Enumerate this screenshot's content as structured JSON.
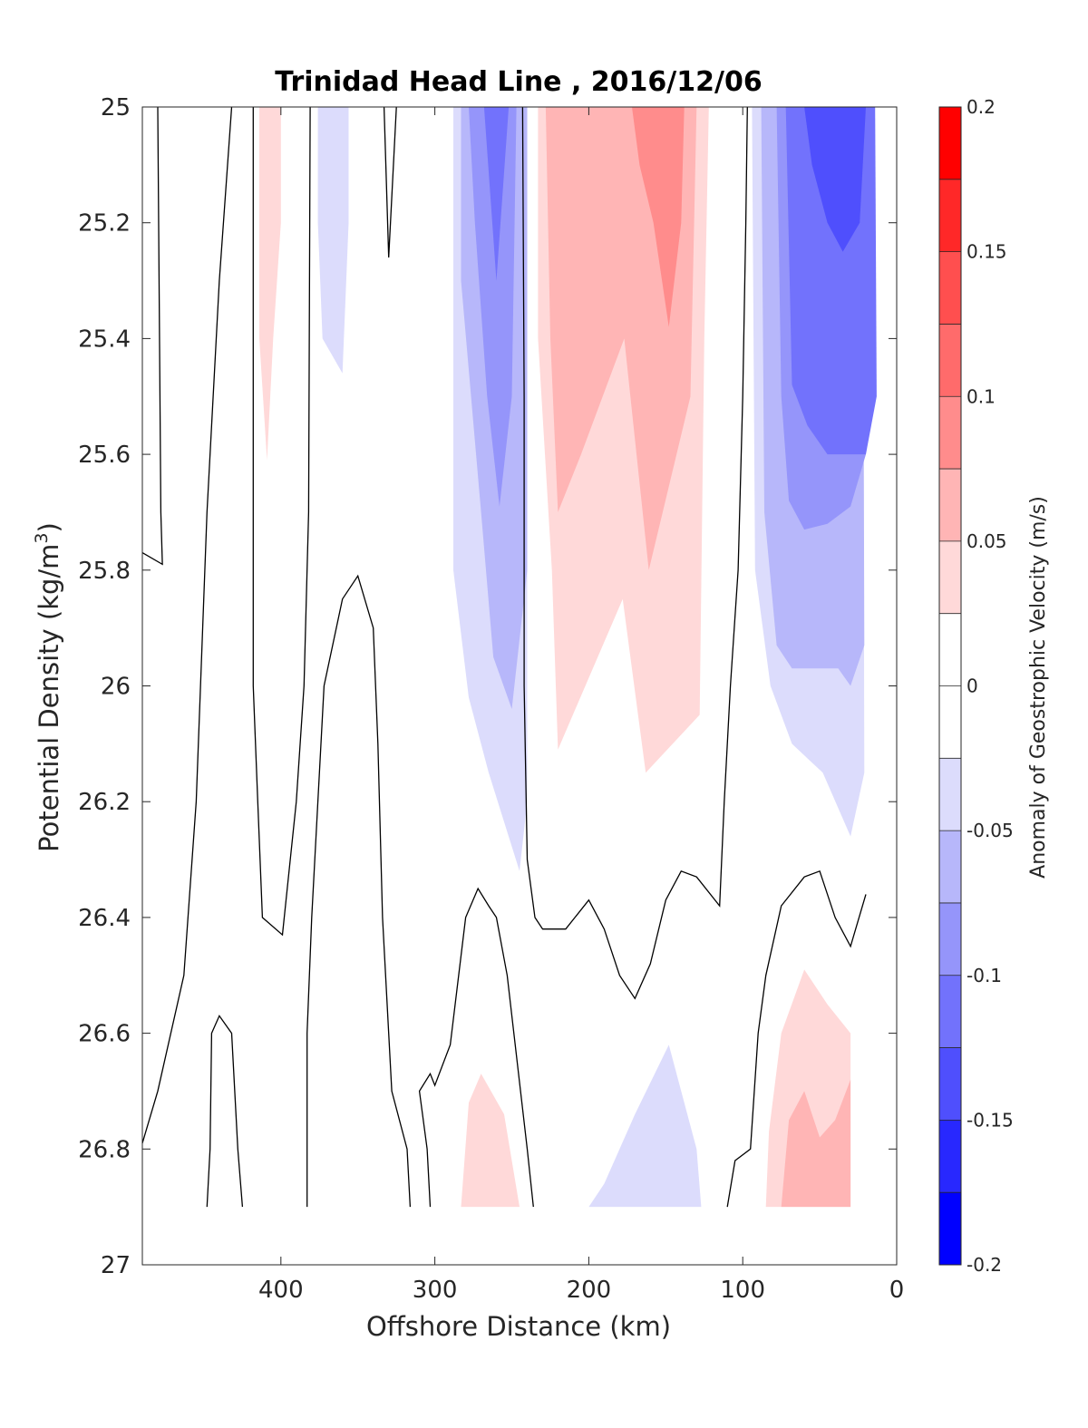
{
  "chart_data": {
    "type": "contourf",
    "title": "Trinidad Head Line , 2016/12/06",
    "xlabel": "Offshore Distance (km)",
    "ylabel_main": "Potential Density (kg/m",
    "ylabel_sup": "3",
    "ylabel_close": ")",
    "colorbar_label": "Anomaly of Geostrophic Velocity (m/s)",
    "xlim": [
      490,
      0
    ],
    "x_reversed": true,
    "ylim": [
      25,
      27
    ],
    "y_reversed": true,
    "x_ticks": [
      400,
      300,
      200,
      100,
      0
    ],
    "x_tick_labels": [
      "400",
      "300",
      "200",
      "100",
      "0"
    ],
    "y_ticks": [
      25,
      25.2,
      25.4,
      25.6,
      25.8,
      26,
      26.2,
      26.4,
      26.6,
      26.8,
      27
    ],
    "y_tick_labels": [
      "25",
      "25.2",
      "25.4",
      "25.6",
      "25.8",
      "26",
      "26.2",
      "26.4",
      "26.6",
      "26.8",
      "27"
    ],
    "colorbar": {
      "range": [
        -0.2,
        0.2
      ],
      "tick_values": [
        0.2,
        0.15,
        0.1,
        0.05,
        0,
        -0.05,
        -0.1,
        -0.15,
        -0.2
      ],
      "tick_labels": [
        "0.2",
        "0.15",
        "0.1",
        "0.05",
        "0",
        "-0.05",
        "-0.1",
        "-0.15",
        "-0.2"
      ],
      "levels": [
        {
          "range": [
            0.175,
            0.2
          ],
          "color": "#ff0000"
        },
        {
          "range": [
            0.15,
            0.175
          ],
          "color": "#ff2828"
        },
        {
          "range": [
            0.125,
            0.15
          ],
          "color": "#ff4f4f"
        },
        {
          "range": [
            0.1,
            0.125
          ],
          "color": "#ff6b6b"
        },
        {
          "range": [
            0.075,
            0.1
          ],
          "color": "#ff8c8c"
        },
        {
          "range": [
            0.05,
            0.075
          ],
          "color": "#ffb5b5"
        },
        {
          "range": [
            0.025,
            0.05
          ],
          "color": "#ffd9d9"
        },
        {
          "range": [
            0,
            0.025
          ],
          "color": "#ffffff"
        },
        {
          "range": [
            -0.025,
            0
          ],
          "color": "#ffffff"
        },
        {
          "range": [
            -0.05,
            -0.025
          ],
          "color": "#dcdcfc"
        },
        {
          "range": [
            -0.075,
            -0.05
          ],
          "color": "#b7b7fa"
        },
        {
          "range": [
            -0.1,
            -0.075
          ],
          "color": "#9595fa"
        },
        {
          "range": [
            -0.125,
            -0.1
          ],
          "color": "#7272fc"
        },
        {
          "range": [
            -0.15,
            -0.125
          ],
          "color": "#4f4ffd"
        },
        {
          "range": [
            -0.175,
            -0.15
          ],
          "color": "#2828fe"
        },
        {
          "range": [
            -0.2,
            -0.175
          ],
          "color": "#0000ff"
        }
      ]
    },
    "filled_regions": [
      {
        "level": 0.025,
        "color": "#ffd9d9",
        "points": [
          [
            414,
            25
          ],
          [
            400,
            25
          ],
          [
            400,
            25.2
          ],
          [
            405,
            25.4
          ],
          [
            409,
            25.61
          ],
          [
            414,
            25.4
          ]
        ]
      },
      {
        "level": -0.025,
        "color": "#dcdcfc",
        "points": [
          [
            383,
            25
          ],
          [
            356,
            25
          ],
          [
            356,
            25.2
          ],
          [
            360,
            25.46
          ],
          [
            373,
            25.4
          ],
          [
            376,
            25.2
          ],
          [
            376,
            25
          ]
        ]
      },
      {
        "level": -0.025,
        "color": "#dcdcfc",
        "points": [
          [
            288,
            25
          ],
          [
            240,
            25
          ],
          [
            240,
            26.2
          ],
          [
            245,
            26.32
          ],
          [
            265,
            26.15
          ],
          [
            278,
            26.02
          ],
          [
            288,
            25.8
          ]
        ]
      },
      {
        "level": -0.05,
        "color": "#b7b7fa",
        "points": [
          [
            283,
            25
          ],
          [
            240,
            25
          ],
          [
            240,
            25.8
          ],
          [
            250,
            26.04
          ],
          [
            262,
            25.95
          ],
          [
            270,
            25.7
          ],
          [
            283,
            25.3
          ]
        ]
      },
      {
        "level": -0.075,
        "color": "#9595fa",
        "points": [
          [
            278,
            25
          ],
          [
            247,
            25
          ],
          [
            250,
            25.5
          ],
          [
            258,
            25.69
          ],
          [
            266,
            25.5
          ],
          [
            274,
            25.2
          ]
        ]
      },
      {
        "level": -0.1,
        "color": "#7272fc",
        "points": [
          [
            268,
            25
          ],
          [
            252,
            25
          ],
          [
            256,
            25.15
          ],
          [
            260,
            25.3
          ],
          [
            264,
            25.15
          ]
        ]
      },
      {
        "level": 0.025,
        "color": "#ffd9d9",
        "points": [
          [
            233,
            25
          ],
          [
            122,
            25
          ],
          [
            125,
            25.4
          ],
          [
            128,
            26.05
          ],
          [
            163,
            26.15
          ],
          [
            178,
            25.85
          ],
          [
            220,
            26.11
          ],
          [
            224,
            25.8
          ],
          [
            233,
            25.4
          ]
        ]
      },
      {
        "level": 0.05,
        "color": "#ffb5b5",
        "points": [
          [
            228,
            25
          ],
          [
            130,
            25
          ],
          [
            134,
            25.5
          ],
          [
            161,
            25.8
          ],
          [
            177,
            25.4
          ],
          [
            205,
            25.6
          ],
          [
            220,
            25.7
          ],
          [
            225,
            25.4
          ]
        ]
      },
      {
        "level": 0.075,
        "color": "#ff8c8c",
        "points": [
          [
            172,
            25
          ],
          [
            138,
            25
          ],
          [
            140,
            25.2
          ],
          [
            148,
            25.38
          ],
          [
            158,
            25.2
          ],
          [
            167,
            25.1
          ]
        ]
      },
      {
        "level": -0.025,
        "color": "#dcdcfc",
        "points": [
          [
            94,
            25
          ],
          [
            22,
            25
          ],
          [
            21,
            26.15
          ],
          [
            30,
            26.26
          ],
          [
            48,
            26.15
          ],
          [
            68,
            26.1
          ],
          [
            82,
            26
          ],
          [
            92,
            25.8
          ]
        ]
      },
      {
        "level": -0.05,
        "color": "#b7b7fa",
        "points": [
          [
            88,
            25
          ],
          [
            22,
            25
          ],
          [
            21,
            25.93
          ],
          [
            30,
            26
          ],
          [
            38,
            25.97
          ],
          [
            55,
            25.97
          ],
          [
            68,
            25.97
          ],
          [
            78,
            25.93
          ],
          [
            86,
            25.7
          ]
        ]
      },
      {
        "level": -0.075,
        "color": "#9595fa",
        "points": [
          [
            78,
            25
          ],
          [
            20,
            25
          ],
          [
            20,
            25.6
          ],
          [
            30,
            25.69
          ],
          [
            45,
            25.72
          ],
          [
            60,
            25.73
          ],
          [
            70,
            25.68
          ],
          [
            75,
            25.5
          ]
        ]
      },
      {
        "level": -0.1,
        "color": "#7272fc",
        "points": [
          [
            72,
            25
          ],
          [
            14,
            25
          ],
          [
            13,
            25.5
          ],
          [
            20,
            25.6
          ],
          [
            30,
            25.6
          ],
          [
            45,
            25.6
          ],
          [
            58,
            25.55
          ],
          [
            68,
            25.48
          ]
        ]
      },
      {
        "level": -0.125,
        "color": "#4f4ffd",
        "points": [
          [
            60,
            25
          ],
          [
            20,
            25
          ],
          [
            24,
            25.2
          ],
          [
            35,
            25.25
          ],
          [
            45,
            25.2
          ],
          [
            55,
            25.1
          ]
        ]
      },
      {
        "level": 0.025,
        "color": "#ffd9d9",
        "points": [
          [
            283,
            26.9
          ],
          [
            245,
            26.9
          ],
          [
            255,
            26.74
          ],
          [
            270,
            26.67
          ],
          [
            278,
            26.72
          ]
        ]
      },
      {
        "level": -0.025,
        "color": "#dcdcfc",
        "points": [
          [
            200,
            26.9
          ],
          [
            127,
            26.9
          ],
          [
            130,
            26.8
          ],
          [
            148,
            26.62
          ],
          [
            170,
            26.74
          ],
          [
            190,
            26.86
          ]
        ]
      },
      {
        "level": 0.025,
        "color": "#ffd9d9",
        "points": [
          [
            85,
            26.9
          ],
          [
            30,
            26.9
          ],
          [
            30,
            26.6
          ],
          [
            45,
            26.55
          ],
          [
            60,
            26.49
          ],
          [
            75,
            26.6
          ],
          [
            83,
            26.77
          ]
        ]
      },
      {
        "level": 0.05,
        "color": "#ffb5b5",
        "points": [
          [
            75,
            26.9
          ],
          [
            30,
            26.9
          ],
          [
            30,
            26.68
          ],
          [
            40,
            26.75
          ],
          [
            50,
            26.78
          ],
          [
            60,
            26.7
          ],
          [
            70,
            26.75
          ]
        ]
      }
    ],
    "contour_lines": [
      {
        "level": 0,
        "points": [
          [
            480,
            25
          ],
          [
            478,
            25.7
          ],
          [
            477,
            25.79
          ],
          [
            490,
            25.77
          ]
        ]
      },
      {
        "level": 0,
        "points": [
          [
            432,
            25
          ],
          [
            440,
            25.3
          ],
          [
            448,
            25.7
          ],
          [
            455,
            26.2
          ],
          [
            463,
            26.5
          ],
          [
            480,
            26.7
          ],
          [
            490,
            26.79
          ]
        ]
      },
      {
        "level": 0,
        "points": [
          [
            418,
            25
          ],
          [
            418,
            25.7
          ],
          [
            418,
            26
          ],
          [
            415,
            26.2
          ],
          [
            412,
            26.4
          ],
          [
            399,
            26.43
          ],
          [
            390,
            26.2
          ],
          [
            385,
            26
          ],
          [
            382,
            25.7
          ],
          [
            381,
            25
          ]
        ]
      },
      {
        "level": 0,
        "points": [
          [
            333,
            25
          ],
          [
            330,
            25.26
          ],
          [
            325,
            25
          ]
        ]
      },
      {
        "level": 0,
        "points": [
          [
            383,
            26.9
          ],
          [
            383,
            26.6
          ],
          [
            380,
            26.4
          ],
          [
            372,
            26
          ],
          [
            360,
            25.85
          ],
          [
            350,
            25.81
          ],
          [
            340,
            25.9
          ],
          [
            337,
            26.1
          ],
          [
            334,
            26.4
          ],
          [
            330,
            26.6
          ],
          [
            328,
            26.7
          ],
          [
            318,
            26.8
          ],
          [
            316,
            26.9
          ]
        ]
      },
      {
        "level": 0,
        "points": [
          [
            448,
            26.9
          ],
          [
            446,
            26.8
          ],
          [
            445,
            26.6
          ],
          [
            440,
            26.57
          ],
          [
            432,
            26.6
          ],
          [
            428,
            26.8
          ],
          [
            425,
            26.9
          ]
        ]
      },
      {
        "level": 0,
        "points": [
          [
            303,
            26.9
          ],
          [
            305,
            26.8
          ],
          [
            310,
            26.7
          ],
          [
            303,
            26.67
          ],
          [
            300,
            26.69
          ],
          [
            290,
            26.62
          ],
          [
            280,
            26.4
          ],
          [
            272,
            26.35
          ],
          [
            265,
            26.38
          ],
          [
            260,
            26.4
          ],
          [
            253,
            26.5
          ],
          [
            240,
            26.8
          ],
          [
            236,
            26.9
          ]
        ]
      },
      {
        "level": 0,
        "points": [
          [
            243,
            25
          ],
          [
            242,
            25.5
          ],
          [
            242,
            26
          ],
          [
            240,
            26.3
          ],
          [
            235,
            26.4
          ],
          [
            230,
            26.42
          ],
          [
            215,
            26.42
          ],
          [
            200,
            26.37
          ],
          [
            190,
            26.42
          ],
          [
            180,
            26.5
          ],
          [
            170,
            26.54
          ],
          [
            160,
            26.48
          ],
          [
            150,
            26.37
          ],
          [
            140,
            26.32
          ],
          [
            130,
            26.33
          ],
          [
            115,
            26.38
          ],
          [
            112,
            26.2
          ],
          [
            108,
            26
          ],
          [
            103,
            25.8
          ],
          [
            100,
            25.5
          ],
          [
            98,
            25.2
          ],
          [
            97,
            25
          ]
        ]
      },
      {
        "level": 0,
        "points": [
          [
            110,
            26.9
          ],
          [
            105,
            26.82
          ],
          [
            95,
            26.8
          ],
          [
            90,
            26.6
          ],
          [
            85,
            26.5
          ],
          [
            75,
            26.38
          ],
          [
            60,
            26.33
          ],
          [
            50,
            26.32
          ],
          [
            40,
            26.4
          ],
          [
            30,
            26.45
          ],
          [
            20,
            26.36
          ]
        ]
      }
    ]
  }
}
